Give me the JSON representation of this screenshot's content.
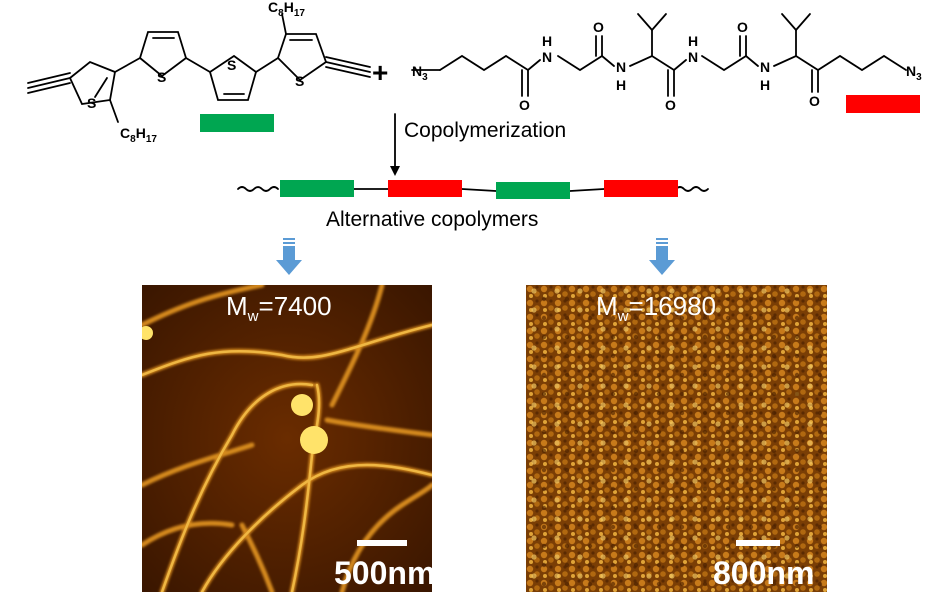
{
  "colors": {
    "thiophene_block": "#00a651",
    "peptide_block": "#ff0000",
    "arrow_blue": "#5b9bd5",
    "afm_dark": "#3a1600",
    "afm_bright": "#ffe36a"
  },
  "reaction": {
    "plus": "+",
    "step_label": "Copolymerization",
    "product_label": "Alternative copolymers"
  },
  "monomer_thiophene": {
    "sulfur": "S",
    "side_chain_top": {
      "main": "C",
      "sub1": "8",
      "mid": "H",
      "sub2": "17"
    },
    "side_chain_bottom": {
      "main": "C",
      "sub1": "8",
      "mid": "H",
      "sub2": "17"
    }
  },
  "monomer_peptide": {
    "azide_left": {
      "main": "N",
      "sub": "3"
    },
    "azide_right": {
      "main": "N",
      "sub": "3"
    },
    "atoms": {
      "nitrogen": "N",
      "hydrogen": "H",
      "oxygen": "O"
    }
  },
  "afm_images": [
    {
      "mw_prefix": "M",
      "mw_sub": "w",
      "mw_value": "=7400",
      "scale_label": "500nm"
    },
    {
      "mw_prefix": "M",
      "mw_sub": "w",
      "mw_value": "=16980",
      "scale_label": "800nm"
    }
  ]
}
